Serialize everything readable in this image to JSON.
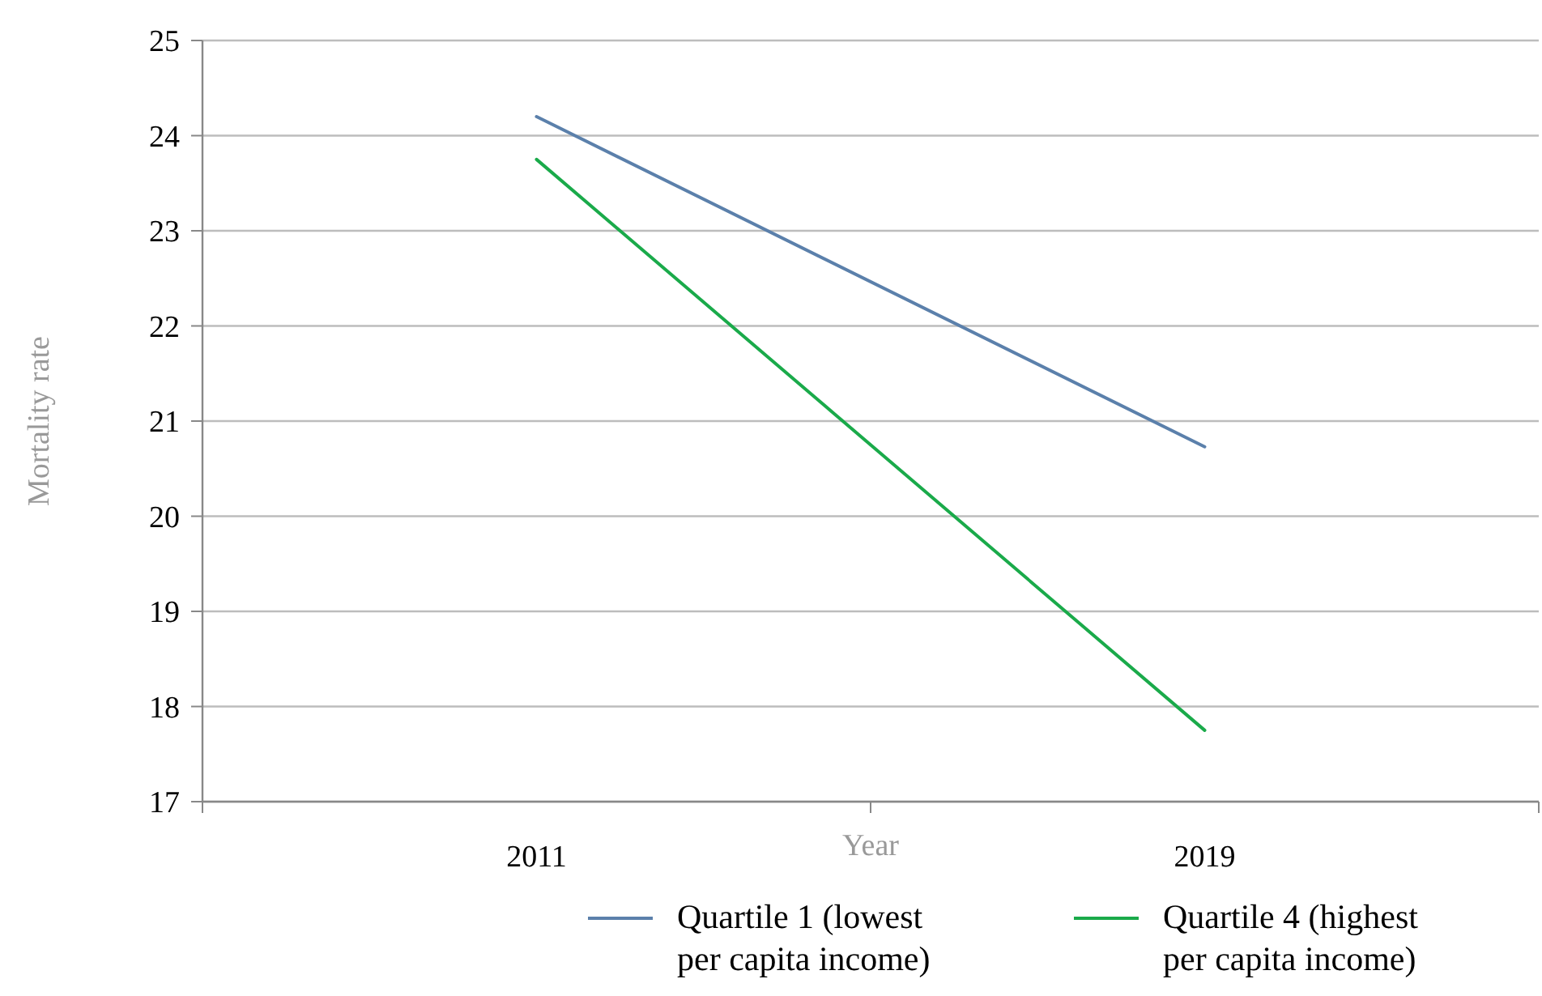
{
  "chart_data": {
    "type": "line",
    "xlabel": "Year",
    "ylabel": "Mortality rate",
    "categories": [
      "2011",
      "2019"
    ],
    "series": [
      {
        "name": "Quartile 1 (lowest per capita income)",
        "color": "#5b80ab",
        "values": [
          24.2,
          20.73
        ]
      },
      {
        "name": "Quartile 4 (highest per capita income)",
        "color": "#1aaa4a",
        "values": [
          23.75,
          17.75
        ]
      }
    ],
    "ylim": [
      17,
      25
    ],
    "yticks": [
      17,
      18,
      19,
      20,
      21,
      22,
      23,
      24,
      25
    ],
    "grid": "y",
    "legend": "bottom",
    "marker": "none",
    "line_style": "solid"
  }
}
